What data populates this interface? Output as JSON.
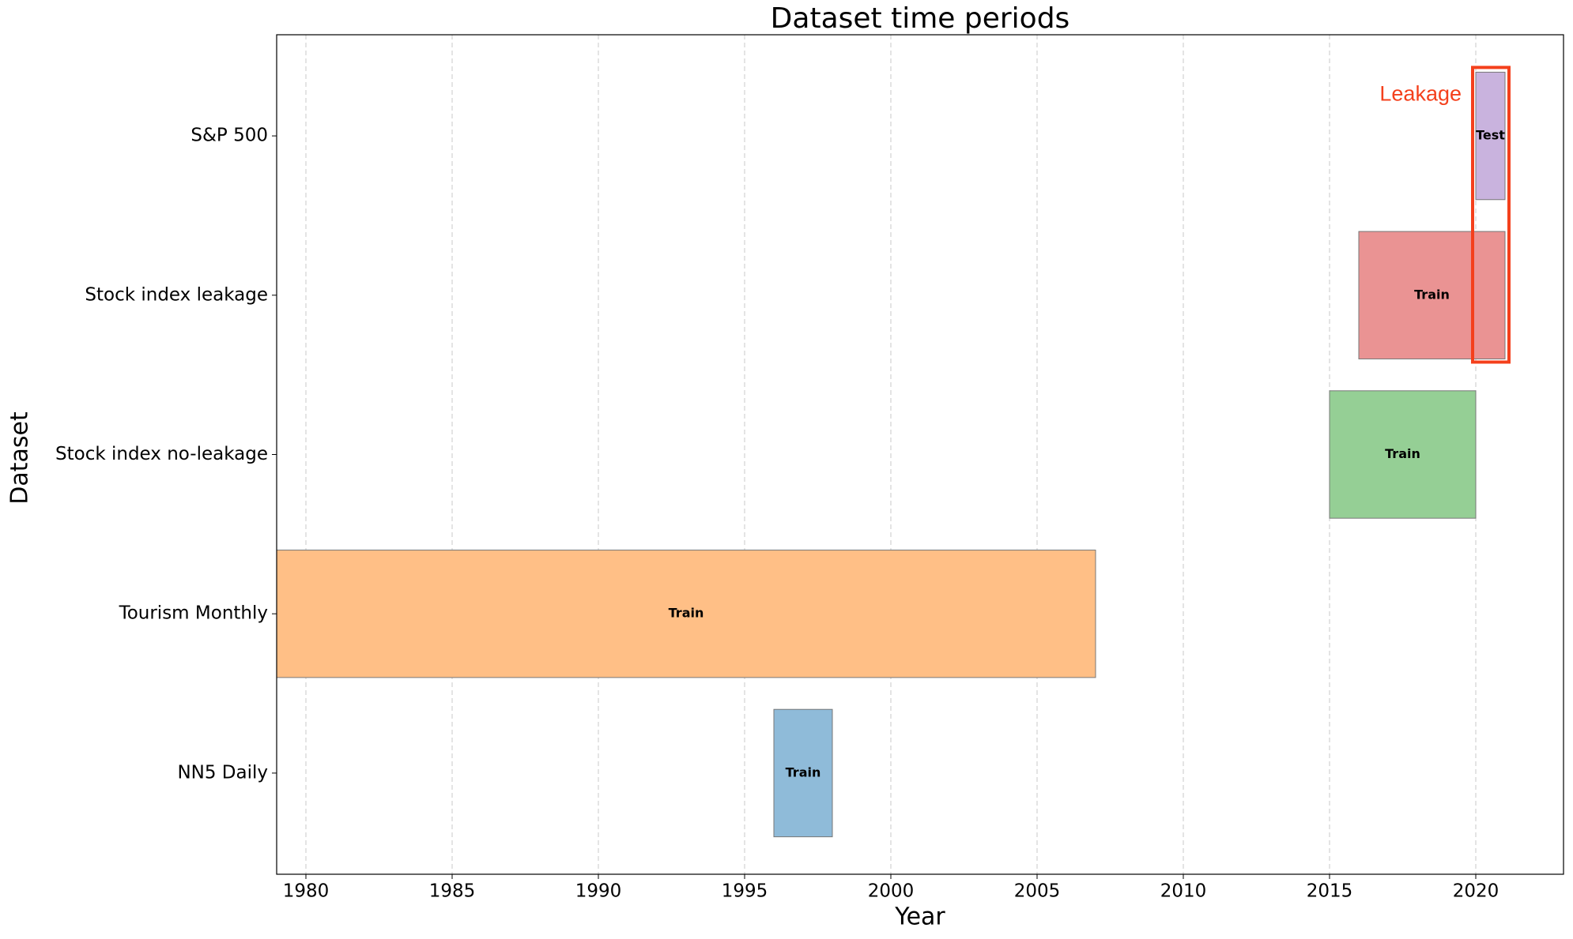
{
  "chart_data": {
    "type": "gantt",
    "title": "Dataset time periods",
    "x_label": "Year",
    "y_label": "Dataset",
    "categories": [
      "NN5 Daily",
      "Tourism Monthly",
      "Stock index no-leakage",
      "Stock index leakage",
      "S&P 500"
    ],
    "starts": [
      1996,
      1979,
      2015,
      2016,
      2020
    ],
    "ends": [
      1998,
      2007,
      2020,
      2021,
      2021
    ],
    "labels": [
      "Train",
      "Train",
      "Train",
      "Train",
      "Test"
    ],
    "colors": [
      "#8fbbd9",
      "#ffbf86",
      "#95cf95",
      "#ea9393",
      "#c9b3de"
    ],
    "xlim": [
      1979,
      2023
    ],
    "xticks": [
      1980,
      1985,
      1990,
      1995,
      2000,
      2005,
      2010,
      2015,
      2020
    ],
    "grid": true,
    "annotation": "Leakage",
    "annotation_color": "#f4401c"
  }
}
